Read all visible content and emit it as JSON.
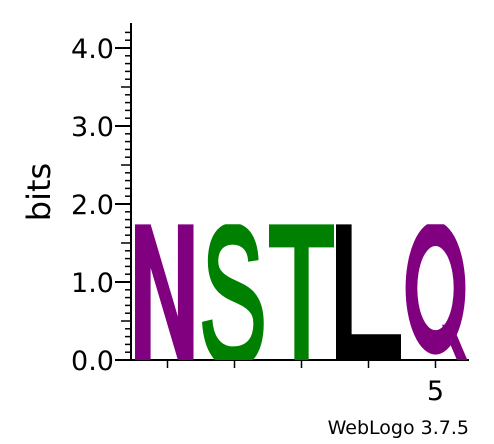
{
  "chart_data": {
    "type": "sequence-logo",
    "ylabel": "bits",
    "ylim": [
      0,
      4.32
    ],
    "y_ticks": [
      "0.0",
      "1.0",
      "2.0",
      "3.0",
      "4.0"
    ],
    "x_ticks": [
      "5"
    ],
    "positions": [
      1,
      2,
      3,
      4,
      5
    ],
    "letters": [
      {
        "position": 1,
        "letter": "N",
        "bits": 1.74,
        "color": "#800080"
      },
      {
        "position": 2,
        "letter": "S",
        "bits": 1.74,
        "color": "#008000"
      },
      {
        "position": 3,
        "letter": "T",
        "bits": 1.74,
        "color": "#008000"
      },
      {
        "position": 4,
        "letter": "L",
        "bits": 1.74,
        "color": "#000000"
      },
      {
        "position": 5,
        "letter": "Q",
        "bits": 1.74,
        "color": "#800080"
      }
    ],
    "footer": "WebLogo 3.7.5"
  }
}
